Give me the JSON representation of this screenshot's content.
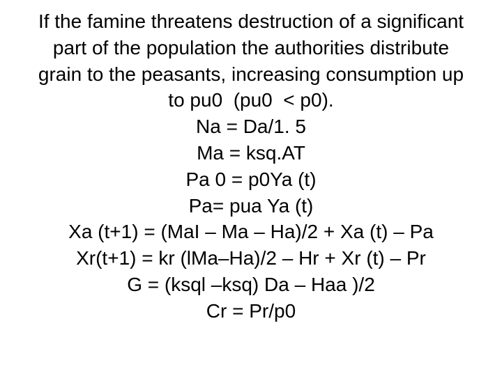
{
  "text": {
    "font_family": "Arial",
    "font_size_pt": 28,
    "font_weight": 400,
    "color": "#000000",
    "background_color": "#ffffff",
    "align": "center",
    "line_height": 1.35
  },
  "lines": [
    "If the famine threatens destruction of a significant",
    "part of the population the authorities distribute",
    "grain to the peasants, increasing consumption up",
    "to pu0  (pu0  < p0).",
    "Na = Da/1. 5",
    "Ma = ksq.AT",
    "Pa 0 = p0Ya (t)",
    "Pa= pua Ya (t)",
    "Xa (t+1) = (MaI – Ma – Ha)/2 + Xa (t) – Pa",
    "Xr(t+1) = kr (lMa–Ha)/2 – Hr + Xr (t) – Pr",
    "G = (ksql –ksq) Da – Haa )/2",
    "Cr = Pr/p0"
  ]
}
